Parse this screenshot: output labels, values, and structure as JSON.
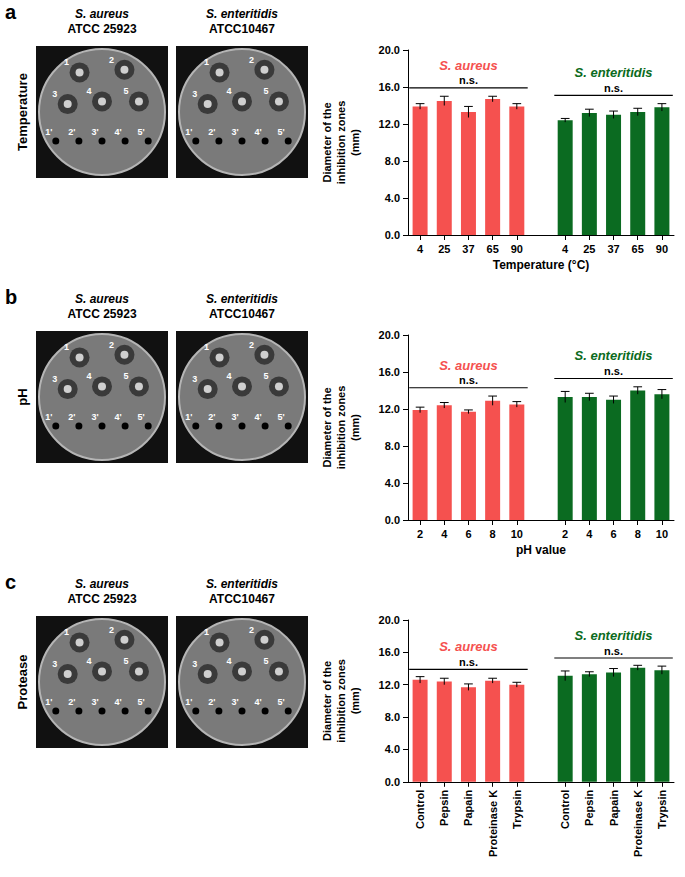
{
  "panels": [
    {
      "letter": "a",
      "row_label": "Temperature"
    },
    {
      "letter": "b",
      "row_label": "pH"
    },
    {
      "letter": "c",
      "row_label": "Protease"
    }
  ],
  "plates": {
    "strains": [
      {
        "species": "S. aureus",
        "strain": "ATCC 25923"
      },
      {
        "species": "S. enteritidis",
        "strain": "ATCC10467"
      }
    ],
    "wells": [
      "1",
      "2",
      "3",
      "4",
      "5"
    ],
    "control_wells": [
      "1'",
      "2'",
      "3'",
      "4'",
      "5'"
    ]
  },
  "chart_data": [
    {
      "type": "bar",
      "categories": [
        "4",
        "25",
        "37",
        "65",
        "90",
        null,
        "4",
        "25",
        "37",
        "65",
        "90"
      ],
      "series": [
        {
          "name": "S. aureus",
          "color": "#f5514f",
          "annotation": "n.s.",
          "values": [
            13.9,
            14.5,
            13.3,
            14.7,
            13.9,
            null,
            null,
            null,
            null,
            null,
            null
          ],
          "errors": [
            0.3,
            0.5,
            0.6,
            0.3,
            0.3,
            null,
            null,
            null,
            null,
            null,
            null
          ]
        },
        {
          "name": "S. enteritidis",
          "color": "#0b6b21",
          "annotation": "n.s.",
          "values": [
            null,
            null,
            null,
            null,
            null,
            null,
            12.4,
            13.2,
            13.0,
            13.3,
            13.8
          ],
          "errors": [
            null,
            null,
            null,
            null,
            null,
            null,
            0.2,
            0.4,
            0.4,
            0.4,
            0.4
          ]
        }
      ],
      "x_label": "Temperature (°C)",
      "y_label": "Diameter of the inhibition zones (mm)",
      "ylim": [
        0,
        20
      ],
      "yticks": [
        {
          "value": 0,
          "label": "0.0"
        },
        {
          "value": 4,
          "label": "4.0"
        },
        {
          "value": 8,
          "label": "8.0"
        },
        {
          "value": 12,
          "label": "12.0"
        },
        {
          "value": 16,
          "label": "16.0"
        },
        {
          "value": 20,
          "label": "20.0"
        }
      ],
      "grid": false
    },
    {
      "type": "bar",
      "categories": [
        "2",
        "4",
        "6",
        "8",
        "10",
        null,
        "2",
        "4",
        "6",
        "8",
        "10"
      ],
      "series": [
        {
          "name": "S. aureus",
          "color": "#f5514f",
          "annotation": "n.s.",
          "values": [
            11.9,
            12.4,
            11.7,
            12.9,
            12.5,
            null,
            null,
            null,
            null,
            null,
            null
          ],
          "errors": [
            0.3,
            0.3,
            0.2,
            0.5,
            0.3,
            null,
            null,
            null,
            null,
            null,
            null
          ]
        },
        {
          "name": "S. enteritidis",
          "color": "#0b6b21",
          "annotation": "n.s.",
          "values": [
            null,
            null,
            null,
            null,
            null,
            null,
            13.3,
            13.3,
            13.0,
            14.0,
            13.6
          ],
          "errors": [
            null,
            null,
            null,
            null,
            null,
            null,
            0.6,
            0.4,
            0.4,
            0.4,
            0.5
          ]
        }
      ],
      "x_label": "pH value",
      "y_label": "Diameter of the inhibition zones (mm)",
      "ylim": [
        0,
        20
      ],
      "yticks": [
        {
          "value": 0,
          "label": "0.0"
        },
        {
          "value": 4,
          "label": "4.0"
        },
        {
          "value": 8,
          "label": "8.0"
        },
        {
          "value": 12,
          "label": "12.0"
        },
        {
          "value": 16,
          "label": "16.0"
        },
        {
          "value": 20,
          "label": "20.0"
        }
      ],
      "grid": false
    },
    {
      "type": "bar",
      "categories": [
        "Control",
        "Pepsin",
        "Papain",
        "Proteinase K",
        "Trypsin",
        null,
        "Control",
        "Pepsin",
        "Papain",
        "Proteinase K",
        "Trypsin"
      ],
      "series": [
        {
          "name": "S. aureus",
          "color": "#f5514f",
          "annotation": "n.s.",
          "values": [
            12.6,
            12.4,
            11.7,
            12.5,
            12.0,
            null,
            null,
            null,
            null,
            null,
            null
          ],
          "errors": [
            0.4,
            0.4,
            0.4,
            0.3,
            0.3,
            null,
            null,
            null,
            null,
            null,
            null
          ]
        },
        {
          "name": "S. enteritidis",
          "color": "#0b6b21",
          "annotation": "n.s.",
          "values": [
            null,
            null,
            null,
            null,
            null,
            null,
            13.1,
            13.3,
            13.5,
            14.1,
            13.8
          ],
          "errors": [
            null,
            null,
            null,
            null,
            null,
            null,
            0.6,
            0.3,
            0.5,
            0.3,
            0.5
          ]
        }
      ],
      "y_label": "Diameter of the inhibition zones (mm)",
      "ylim": [
        0,
        20
      ],
      "yticks": [
        {
          "value": 0,
          "label": "0.0"
        },
        {
          "value": 4,
          "label": "4.0"
        },
        {
          "value": 8,
          "label": "8.0"
        },
        {
          "value": 12,
          "label": "12.0"
        },
        {
          "value": 16,
          "label": "16.0"
        },
        {
          "value": 20,
          "label": "20.0"
        }
      ],
      "grid": false
    }
  ]
}
